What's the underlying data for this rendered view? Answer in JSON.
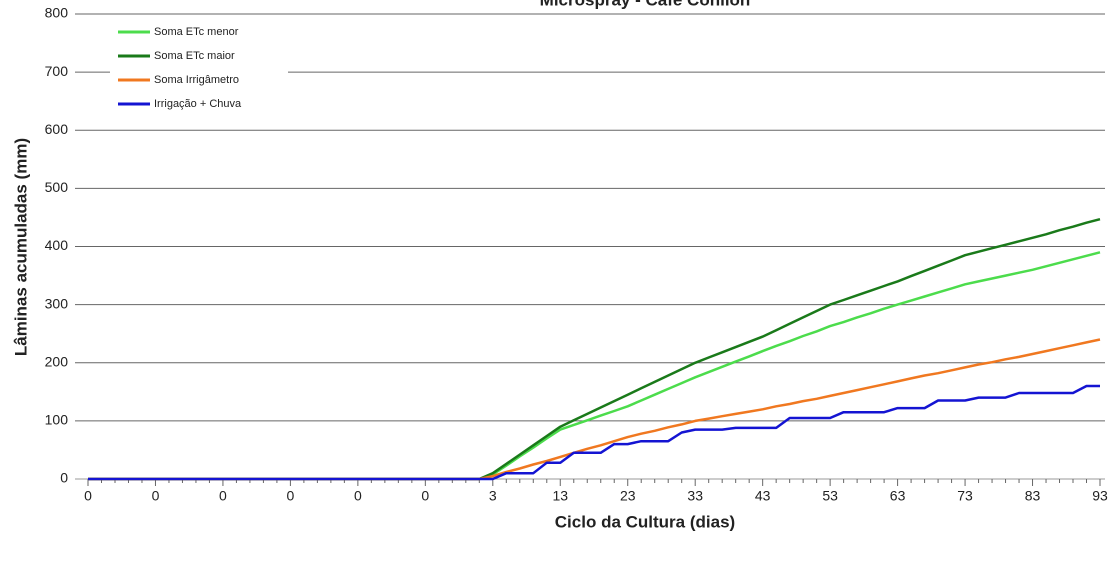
{
  "chart_data": {
    "type": "line",
    "title": "Microspray - Café Conilon",
    "y_label": "Lâminas acumuladas (mm)",
    "x_label": "Ciclo da Cultura (dias)",
    "categories": [
      "0",
      null,
      null,
      null,
      null,
      "0",
      null,
      null,
      null,
      null,
      "0",
      null,
      null,
      null,
      null,
      "0",
      null,
      null,
      null,
      null,
      "0",
      null,
      null,
      null,
      null,
      "0",
      null,
      null,
      null,
      null,
      "3",
      null,
      null,
      null,
      null,
      "13",
      null,
      null,
      null,
      null,
      "23",
      null,
      null,
      null,
      null,
      "33",
      null,
      null,
      null,
      null,
      "43",
      null,
      null,
      null,
      null,
      "53",
      null,
      null,
      null,
      null,
      "63",
      null,
      null,
      null,
      null,
      "73",
      null,
      null,
      null,
      null,
      "83",
      null,
      null,
      null,
      null,
      "93"
    ],
    "ylim": [
      0,
      800
    ],
    "yticks": [
      0,
      100,
      200,
      300,
      400,
      500,
      600,
      700,
      800
    ],
    "grid": true,
    "legend": "upper left",
    "series": [
      {
        "name": "Soma ETc menor",
        "color": "#4cdc4c",
        "values": [
          0,
          0,
          0,
          0,
          0,
          0,
          0,
          0,
          0,
          0,
          0,
          0,
          0,
          0,
          0,
          0,
          0,
          0,
          0,
          0,
          0,
          0,
          0,
          0,
          0,
          0,
          0,
          0,
          0,
          0,
          8,
          23,
          39,
          54,
          70,
          85,
          93,
          101,
          109,
          117,
          125,
          135,
          145,
          155,
          165,
          175,
          184,
          193,
          202,
          211,
          220,
          229,
          237,
          246,
          254,
          263,
          270,
          278,
          285,
          293,
          300,
          307,
          314,
          321,
          328,
          335,
          340,
          345,
          350,
          355,
          360,
          366,
          372,
          378,
          384,
          390
        ]
      },
      {
        "name": "Soma ETc maior",
        "color": "#1a7a1a",
        "values": [
          0,
          0,
          0,
          0,
          0,
          0,
          0,
          0,
          0,
          0,
          0,
          0,
          0,
          0,
          0,
          0,
          0,
          0,
          0,
          0,
          0,
          0,
          0,
          0,
          0,
          0,
          0,
          0,
          0,
          0,
          10,
          26,
          42,
          58,
          74,
          90,
          101,
          112,
          123,
          134,
          145,
          156,
          167,
          178,
          189,
          200,
          209,
          218,
          227,
          236,
          245,
          256,
          267,
          278,
          289,
          300,
          308,
          316,
          324,
          332,
          340,
          349,
          358,
          367,
          376,
          385,
          391,
          397,
          403,
          409,
          415,
          421,
          428,
          434,
          441,
          447
        ]
      },
      {
        "name": "Soma Irrigâmetro",
        "color": "#f07820",
        "values": [
          0,
          0,
          0,
          0,
          0,
          0,
          0,
          0,
          0,
          0,
          0,
          0,
          0,
          0,
          0,
          0,
          0,
          0,
          0,
          0,
          0,
          0,
          0,
          0,
          0,
          0,
          0,
          0,
          0,
          0,
          5,
          12,
          18,
          25,
          31,
          38,
          45,
          52,
          58,
          65,
          72,
          78,
          83,
          89,
          94,
          100,
          104,
          108,
          112,
          116,
          120,
          125,
          129,
          134,
          138,
          143,
          148,
          153,
          158,
          163,
          168,
          173,
          178,
          182,
          187,
          192,
          197,
          201,
          206,
          210,
          215,
          220,
          225,
          230,
          235,
          240
        ]
      },
      {
        "name": "Irrigação + Chuva",
        "color": "#1414d2",
        "values": [
          0,
          0,
          0,
          0,
          0,
          0,
          0,
          0,
          0,
          0,
          0,
          0,
          0,
          0,
          0,
          0,
          0,
          0,
          0,
          0,
          0,
          0,
          0,
          0,
          0,
          0,
          0,
          0,
          0,
          0,
          0,
          10,
          10,
          10,
          28,
          28,
          45,
          45,
          45,
          60,
          60,
          65,
          65,
          65,
          80,
          85,
          85,
          85,
          88,
          88,
          88,
          88,
          105,
          105,
          105,
          105,
          115,
          115,
          115,
          115,
          122,
          122,
          122,
          135,
          135,
          135,
          140,
          140,
          140,
          148,
          148,
          148,
          148,
          148,
          160,
          160
        ]
      }
    ]
  }
}
